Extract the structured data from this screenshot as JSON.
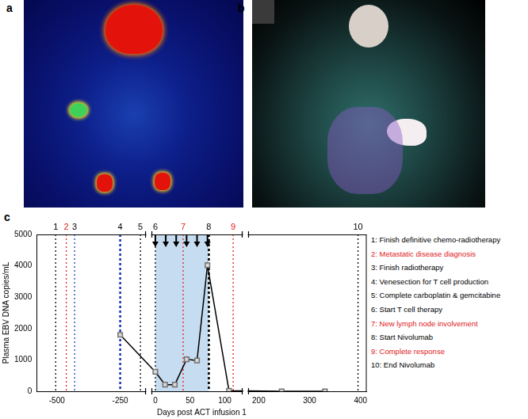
{
  "panel_labels": [
    "a",
    "b",
    "c"
  ],
  "chart_data": {
    "type": "line",
    "x_label": "Days post ACT infusion 1",
    "y_label": "Plasma EBV DNA copies/mL",
    "x": [
      -250,
      0,
      14,
      28,
      45,
      60,
      75,
      106,
      245,
      330
    ],
    "series": [
      {
        "name": "Plasma EBV DNA",
        "color": "#000000",
        "marker": "square",
        "values": [
          1800,
          620,
          210,
          210,
          1020,
          980,
          4020,
          20,
          0,
          0
        ]
      }
    ],
    "xlim": [
      -580,
      412
    ],
    "x_segments": [
      [
        -580,
        -150
      ],
      [
        -5,
        125
      ],
      [
        180,
        412
      ]
    ],
    "xticks": [
      -500,
      -250,
      0,
      50,
      100,
      200,
      300,
      400
    ],
    "ylim": [
      0,
      5000
    ],
    "yticks": [
      0,
      1000,
      2000,
      3000,
      4000,
      5000
    ],
    "grid": false,
    "act_period": {
      "start": 0,
      "end": 77,
      "color": "#c6dcf0"
    },
    "infusions": [
      0,
      15,
      30,
      45,
      60,
      75
    ],
    "events": [
      {
        "label": "1",
        "day": -505,
        "color": "#000000",
        "text_color": "#000000",
        "line_style": "dotted",
        "text": "1: Finish definitive chemo-radiotherapy"
      },
      {
        "label": "2",
        "day": -463,
        "color": "#e0201b",
        "text_color": "#e0201b",
        "line_style": "dotted",
        "text": "2: Metastatic disease diagnosis"
      },
      {
        "label": "3",
        "day": -430,
        "color": "#1f3fb4",
        "text_color": "#000000",
        "line_style": "dotted",
        "text": "3: Finish radiotherapy"
      },
      {
        "label": "4",
        "day": -250,
        "color": "#1f3fb4",
        "text_color": "#000000",
        "line_style": "bold dotted",
        "text": "4: Venesection for T cell production"
      },
      {
        "label": "5",
        "day": -170,
        "color": "#000000",
        "text_color": "#000000",
        "line_style": "dotted",
        "text": "5: Complete carboplatin & gemcitabine"
      },
      {
        "label": "6",
        "day": 0,
        "color": "#000000",
        "text_color": "#000000",
        "line_style": "dotted",
        "text": "6: Start T cell therapy"
      },
      {
        "label": "7",
        "day": 40,
        "color": "#e0201b",
        "text_color": "#e0201b",
        "line_style": "dotted",
        "text": "7: New lymph node involvement"
      },
      {
        "label": "8",
        "day": 77,
        "color": "#000000",
        "text_color": "#000000",
        "line_style": "bold dotted",
        "text": "8: Start Nivolumab"
      },
      {
        "label": "9",
        "day": 112,
        "color": "#e0201b",
        "text_color": "#e0201b",
        "line_style": "dotted",
        "text": "9: Complete response"
      },
      {
        "label": "10",
        "day": 395,
        "color": "#000000",
        "text_color": "#000000",
        "line_style": "dotted",
        "text": "10: End Nivolumab"
      }
    ]
  }
}
